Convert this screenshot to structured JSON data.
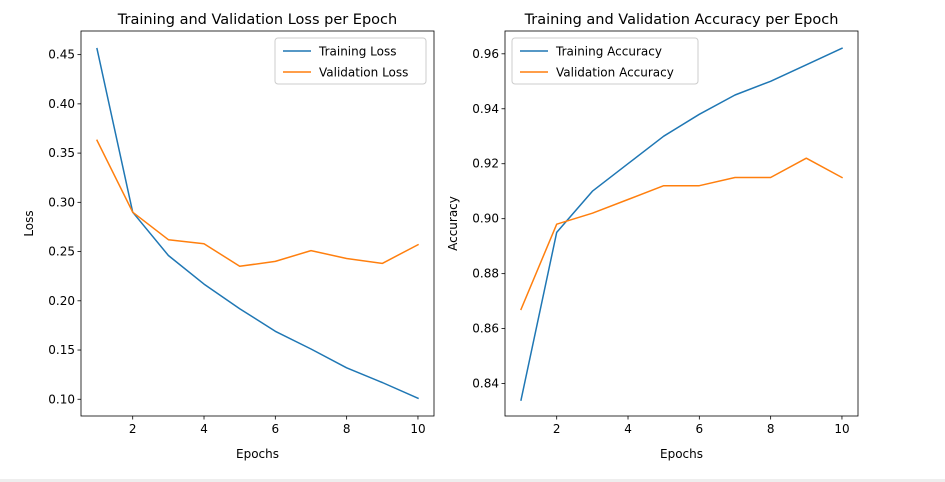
{
  "colors": {
    "training": "#1f77b4",
    "validation": "#ff7f0e",
    "axes": "#000000"
  },
  "chart_data": [
    {
      "type": "line",
      "title": "Training and Validation Loss per Epoch",
      "xlabel": "Epochs",
      "ylabel": "Loss",
      "x": [
        1,
        2,
        3,
        4,
        5,
        6,
        7,
        8,
        9,
        10
      ],
      "xticks": [
        "2",
        "4",
        "6",
        "8",
        "10"
      ],
      "yticks": [
        "0.10",
        "0.15",
        "0.20",
        "0.25",
        "0.30",
        "0.35",
        "0.40",
        "0.45"
      ],
      "xlim": [
        0.55,
        10.45
      ],
      "ylim": [
        0.083,
        0.474
      ],
      "legend": "top-right",
      "grid": false,
      "series": [
        {
          "name": "Training Loss",
          "color": "#1f77b4",
          "values": [
            0.456,
            0.29,
            0.246,
            0.217,
            0.192,
            0.169,
            0.151,
            0.132,
            0.117,
            0.101
          ]
        },
        {
          "name": "Validation Loss",
          "color": "#ff7f0e",
          "values": [
            0.363,
            0.29,
            0.262,
            0.258,
            0.235,
            0.24,
            0.251,
            0.243,
            0.238,
            0.257
          ]
        }
      ]
    },
    {
      "type": "line",
      "title": "Training and Validation Accuracy per Epoch",
      "xlabel": "Epochs",
      "ylabel": "Accuracy",
      "x": [
        1,
        2,
        3,
        4,
        5,
        6,
        7,
        8,
        9,
        10
      ],
      "xticks": [
        "2",
        "4",
        "6",
        "8",
        "10"
      ],
      "yticks": [
        "0.84",
        "0.86",
        "0.88",
        "0.90",
        "0.92",
        "0.94",
        "0.96"
      ],
      "xlim": [
        0.55,
        10.45
      ],
      "ylim": [
        0.8282,
        0.9683
      ],
      "legend": "top-left",
      "grid": false,
      "series": [
        {
          "name": "Training Accuracy",
          "color": "#1f77b4",
          "values": [
            0.834,
            0.895,
            0.91,
            0.92,
            0.93,
            0.938,
            0.945,
            0.95,
            0.956,
            0.962
          ]
        },
        {
          "name": "Validation Accuracy",
          "color": "#ff7f0e",
          "values": [
            0.867,
            0.898,
            0.902,
            0.907,
            0.912,
            0.912,
            0.915,
            0.915,
            0.922,
            0.915
          ]
        }
      ]
    }
  ]
}
